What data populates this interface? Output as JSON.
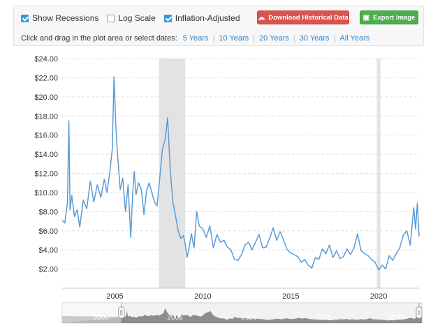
{
  "controls": {
    "show_recessions": {
      "label": "Show Recessions",
      "checked": true
    },
    "log_scale": {
      "label": "Log Scale",
      "checked": false
    },
    "inflation_adjusted": {
      "label": "Inflation-Adjusted",
      "checked": true
    },
    "download_button": "Download Historical Data",
    "export_button": "Export Image",
    "range_prompt": "Click and drag in the plot area or select dates:",
    "ranges": [
      "5 Years",
      "10 Years",
      "20 Years",
      "30 Years",
      "All Years"
    ]
  },
  "colors": {
    "line": "#5b9bd5",
    "recession": "#e3e3e3",
    "grid": "#e0e0e0",
    "navigator": "#7a7a7a"
  },
  "chart_data": {
    "type": "line",
    "title": "",
    "xlabel": "",
    "ylabel": "",
    "ylim": [
      0,
      24
    ],
    "xlim": [
      2002.0,
      2022.3
    ],
    "y_ticks": [
      "$2.00",
      "$4.00",
      "$6.00",
      "$8.00",
      "$10.00",
      "$12.00",
      "$14.00",
      "$16.00",
      "$18.00",
      "$20.00",
      "$22.00",
      "$24.00"
    ],
    "x_ticks": [
      "2005",
      "2010",
      "2015",
      "2020"
    ],
    "grid": true,
    "recessions": [
      [
        2007.5,
        2009.0
      ],
      [
        2019.9,
        2020.1
      ]
    ],
    "navigator_labels": [
      "2000",
      "2005",
      "2010",
      "2015",
      "2020"
    ],
    "series": [
      {
        "x": [
          2002.0,
          2002.15,
          2002.3,
          2002.38,
          2002.45,
          2002.55,
          2002.7,
          2002.85,
          2003.0,
          2003.2,
          2003.4,
          2003.6,
          2003.8,
          2004.0,
          2004.2,
          2004.4,
          2004.55,
          2004.7,
          2004.85,
          2004.95,
          2005.05,
          2005.15,
          2005.3,
          2005.45,
          2005.6,
          2005.75,
          2005.9,
          2006.0,
          2006.1,
          2006.2,
          2006.35,
          2006.5,
          2006.65,
          2006.8,
          2006.95,
          2007.1,
          2007.25,
          2007.4,
          2007.55,
          2007.7,
          2007.85,
          2008.0,
          2008.15,
          2008.3,
          2008.45,
          2008.6,
          2008.75,
          2008.9,
          2009.0,
          2009.1,
          2009.2,
          2009.35,
          2009.5,
          2009.65,
          2009.8,
          2010.0,
          2010.2,
          2010.4,
          2010.6,
          2010.8,
          2011.0,
          2011.2,
          2011.4,
          2011.6,
          2011.8,
          2012.0,
          2012.2,
          2012.4,
          2012.6,
          2012.8,
          2013.0,
          2013.2,
          2013.4,
          2013.6,
          2013.8,
          2014.0,
          2014.2,
          2014.4,
          2014.6,
          2014.8,
          2015.0,
          2015.2,
          2015.4,
          2015.6,
          2015.8,
          2016.0,
          2016.2,
          2016.4,
          2016.6,
          2016.8,
          2017.0,
          2017.2,
          2017.4,
          2017.6,
          2017.8,
          2018.0,
          2018.2,
          2018.4,
          2018.6,
          2018.8,
          2019.0,
          2019.2,
          2019.4,
          2019.6,
          2019.8,
          2020.0,
          2020.2,
          2020.4,
          2020.6,
          2020.8,
          2021.0,
          2021.2,
          2021.4,
          2021.6,
          2021.8,
          2022.0,
          2022.1,
          2022.2,
          2022.3
        ],
        "values": [
          7.1,
          6.8,
          9.0,
          17.5,
          8.2,
          9.7,
          7.5,
          8.2,
          6.4,
          9.2,
          8.3,
          11.2,
          9.0,
          10.8,
          9.5,
          11.4,
          10.0,
          12.0,
          14.5,
          22.1,
          17.0,
          14.0,
          10.3,
          11.5,
          8.0,
          10.8,
          5.3,
          9.5,
          12.2,
          9.8,
          11.0,
          10.3,
          7.7,
          10.2,
          11.0,
          10.0,
          9.0,
          8.6,
          11.5,
          14.5,
          15.5,
          17.8,
          12.3,
          9.0,
          7.5,
          6.0,
          5.2,
          5.5,
          4.6,
          3.2,
          4.0,
          5.7,
          4.2,
          8.0,
          6.5,
          6.2,
          5.3,
          6.5,
          4.2,
          5.6,
          4.8,
          5.0,
          4.3,
          4.0,
          3.0,
          2.9,
          3.5,
          4.5,
          4.8,
          4.0,
          4.8,
          5.6,
          4.2,
          4.3,
          5.2,
          6.3,
          5.0,
          5.9,
          5.0,
          4.0,
          3.7,
          3.5,
          3.3,
          2.7,
          3.0,
          2.4,
          2.1,
          3.2,
          3.0,
          4.1,
          3.6,
          4.5,
          3.2,
          3.9,
          3.1,
          3.3,
          4.1,
          3.5,
          4.2,
          5.7,
          3.9,
          3.6,
          3.4,
          3.0,
          2.7,
          1.9,
          2.4,
          2.0,
          3.4,
          2.9,
          3.6,
          4.2,
          5.5,
          6.0,
          4.5,
          8.4,
          6.2,
          8.9,
          5.4
        ]
      }
    ]
  }
}
